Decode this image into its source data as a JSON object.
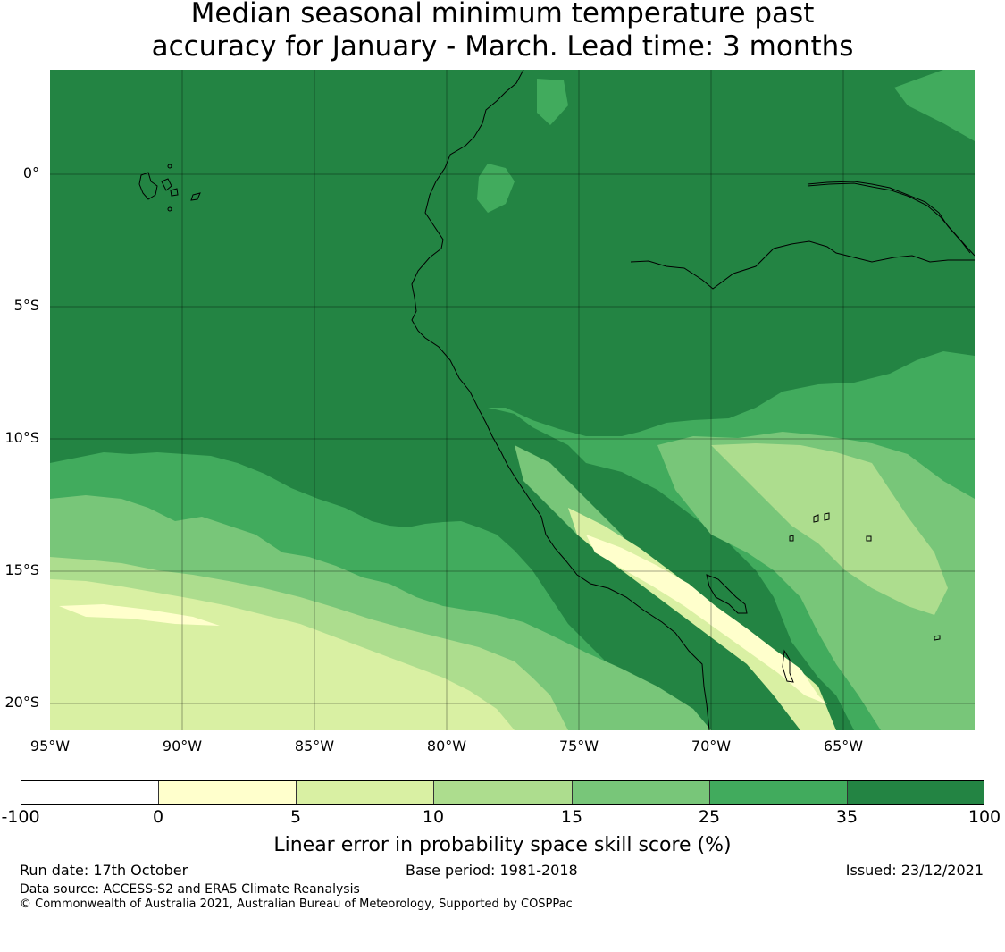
{
  "title": {
    "line1": "Median seasonal minimum temperature past",
    "line2": "accuracy for January - March. Lead time: 3 months"
  },
  "map": {
    "lat_labels": [
      "0°",
      "5°S",
      "10°S",
      "15°S",
      "20°S"
    ],
    "lon_labels": [
      "95°W",
      "90°W",
      "85°W",
      "80°W",
      "75°W",
      "70°W",
      "65°W"
    ],
    "colors": {
      "c35_100": "#238443",
      "c25_35": "#41ab5d",
      "c15_25": "#78c679",
      "c10_15": "#addd8e",
      "c5_10": "#d9f0a3",
      "c0_5": "#ffffcc",
      "cneg": "#ffffff"
    }
  },
  "colorbar": {
    "ticks": [
      "-100",
      "0",
      "5",
      "10",
      "15",
      "25",
      "35",
      "100"
    ],
    "colors": [
      "#ffffff",
      "#ffffcc",
      "#d9f0a3",
      "#addd8e",
      "#78c679",
      "#41ab5d",
      "#238443"
    ],
    "label": "Linear error in probability space skill score (%)"
  },
  "footer": {
    "run_date": "Run date: 17th October",
    "base_period": "Base period: 1981-2018",
    "issued": "Issued: 23/12/2021",
    "data_source": "Data source: ACCESS-S2 and ERA5 Climate Reanalysis",
    "copyright": "© Commonwealth of Australia 2021, Australian Bureau of Meteorology, Supported by COSPPac"
  }
}
